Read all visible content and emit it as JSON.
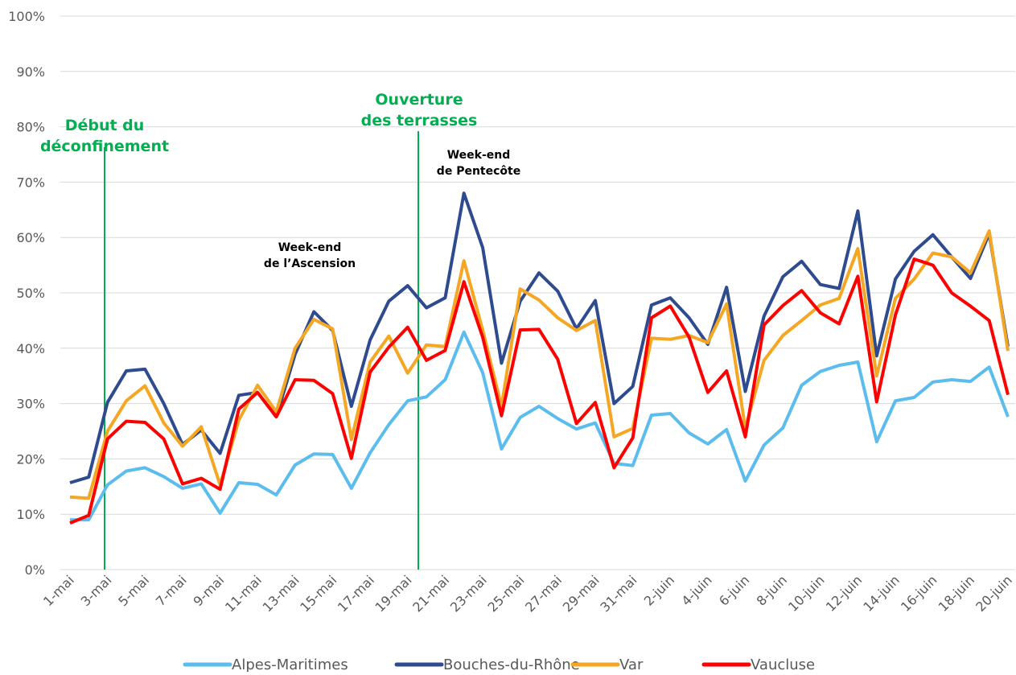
{
  "chart_data": {
    "type": "line",
    "categories": [
      "1-mai",
      null,
      "3-mai",
      null,
      "5-mai",
      null,
      "7-mai",
      null,
      "9-mai",
      null,
      "11-mai",
      null,
      "13-mai",
      null,
      "15-mai",
      null,
      "17-mai",
      null,
      "19-mai",
      null,
      "21-mai",
      null,
      "23-mai",
      null,
      "25-mai",
      null,
      "27-mai",
      null,
      "29-mai",
      null,
      "31-mai",
      null,
      "2-juin",
      null,
      "4-juin",
      null,
      "6-juin",
      null,
      "8-juin",
      null,
      "10-juin",
      null,
      "12-juin",
      null,
      "14-juin",
      null,
      "16-juin",
      null,
      "18-juin",
      null,
      "20-juin"
    ],
    "ylim": [
      0,
      100
    ],
    "yticks": [
      {
        "value": 0,
        "label": "0%"
      },
      {
        "value": 10,
        "label": "10%"
      },
      {
        "value": 20,
        "label": "20%"
      },
      {
        "value": 30,
        "label": "30%"
      },
      {
        "value": 40,
        "label": "40%"
      },
      {
        "value": 50,
        "label": "50%"
      },
      {
        "value": 60,
        "label": "60%"
      },
      {
        "value": 70,
        "label": "70%"
      },
      {
        "value": 80,
        "label": "80%"
      },
      {
        "value": 90,
        "label": "90%"
      },
      {
        "value": 100,
        "label": "100%"
      }
    ],
    "grid": true,
    "legend": "bottom",
    "series": [
      {
        "name": "Alpes-Maritimes",
        "color": "#5bbcee",
        "values": [
          9,
          9,
          15.3,
          17.8,
          18.4,
          16.8,
          14.7,
          15.5,
          10.2,
          15.7,
          15.4,
          13.5,
          18.9,
          20.9,
          20.8,
          14.7,
          21.1,
          26.2,
          30.5,
          31.2,
          34.3,
          42.9,
          35.6,
          21.8,
          27.5,
          29.5,
          27.3,
          25.4,
          26.5,
          19.2,
          18.8,
          27.9,
          28.2,
          24.7,
          22.7,
          25.3,
          16,
          22.5,
          25.6,
          33.3,
          35.8,
          36.9,
          37.5,
          23.1,
          30.5,
          31.1,
          33.9,
          34.3,
          34,
          36.6,
          27.6
        ]
      },
      {
        "name": "Bouches-du-Rhône",
        "color": "#2f4b8f",
        "values": [
          15.7,
          16.7,
          30.2,
          35.9,
          36.2,
          30,
          22.6,
          25.2,
          21,
          31.5,
          32,
          27.6,
          38.9,
          46.6,
          43.2,
          29.5,
          41.5,
          48.5,
          51.3,
          47.3,
          49.1,
          68,
          58.2,
          37.3,
          48.5,
          53.6,
          50.3,
          43.5,
          48.6,
          30,
          33.1,
          47.8,
          49.1,
          45.5,
          40.7,
          51,
          32.2,
          45.8,
          52.9,
          55.7,
          51.5,
          50.8,
          64.8,
          38.6,
          52.5,
          57.5,
          60.5,
          56.5,
          52.6,
          60.7,
          40.3
        ]
      },
      {
        "name": "Var",
        "color": "#f5a623",
        "values": [
          13.1,
          12.9,
          25,
          30.5,
          33.2,
          26.5,
          22.3,
          25.8,
          15.3,
          27,
          33.3,
          28.5,
          40,
          45.2,
          43.5,
          23.5,
          37.5,
          42.2,
          35.5,
          40.6,
          40.3,
          55.8,
          43.3,
          29.5,
          50.7,
          48.7,
          45.5,
          43.2,
          45,
          24,
          25.5,
          41.8,
          41.6,
          42.3,
          41,
          48,
          25.5,
          37.8,
          42.3,
          45,
          47.8,
          49,
          58,
          35,
          49,
          52.5,
          57.2,
          56.5,
          53.6,
          61.2,
          39.5
        ]
      },
      {
        "name": "Vaucluse",
        "color": "#ff0000",
        "values": [
          8.4,
          9.8,
          23.6,
          26.8,
          26.6,
          23.6,
          15.5,
          16.5,
          14.5,
          29,
          32,
          27.6,
          34.3,
          34.2,
          31.8,
          20.1,
          35.7,
          40.2,
          43.8,
          37.8,
          39.6,
          52,
          42,
          27.8,
          43.3,
          43.4,
          38,
          26.4,
          30.2,
          18.4,
          23.8,
          45.5,
          47.6,
          42,
          32,
          35.9,
          24,
          44.2,
          47.7,
          50.4,
          46.4,
          44.4,
          53,
          30.3,
          46,
          56.1,
          55,
          50,
          47.6,
          45,
          31.6
        ]
      }
    ],
    "annotations": [
      {
        "lines": [
          "Début du",
          "déconfinement"
        ],
        "color": "#00b050"
      },
      {
        "lines": [
          "Ouverture",
          "des terrasses"
        ],
        "color": "#00b050"
      },
      {
        "lines": [
          "Week-end",
          "de l’Ascension"
        ],
        "color": "#000000"
      },
      {
        "lines": [
          "Week-end",
          "de Pentecôte"
        ],
        "color": "#000000"
      }
    ]
  }
}
